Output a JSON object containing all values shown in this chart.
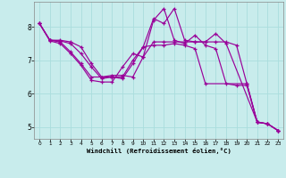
{
  "xlabel": "Windchill (Refroidissement éolien,°C)",
  "bg_color": "#c8ecec",
  "line_color": "#990099",
  "grid_color": "#aadddd",
  "x_ticks": [
    0,
    1,
    2,
    3,
    4,
    5,
    6,
    7,
    8,
    9,
    10,
    11,
    12,
    13,
    14,
    15,
    16,
    17,
    18,
    19,
    20,
    21,
    22,
    23
  ],
  "y_ticks": [
    5,
    6,
    7,
    8
  ],
  "xlim": [
    -0.5,
    23.5
  ],
  "ylim": [
    4.65,
    8.75
  ],
  "line1_x": [
    0,
    1,
    2,
    3,
    4,
    5,
    6,
    7,
    8,
    9,
    10,
    11,
    12,
    13,
    14,
    15,
    16,
    17,
    18,
    19,
    20,
    21,
    22,
    23
  ],
  "line1_y": [
    8.1,
    7.6,
    7.6,
    7.55,
    7.4,
    6.9,
    6.5,
    6.55,
    6.55,
    6.5,
    7.1,
    7.55,
    7.55,
    7.55,
    7.55,
    7.55,
    7.55,
    7.55,
    7.55,
    7.45,
    6.3,
    5.15,
    5.1,
    4.9
  ],
  "line2_x": [
    0,
    1,
    2,
    3,
    4,
    5,
    6,
    7,
    8,
    9,
    10,
    11,
    12,
    13,
    14,
    15,
    16,
    17,
    18,
    21,
    22,
    23
  ],
  "line2_y": [
    8.1,
    7.6,
    7.58,
    7.5,
    7.2,
    6.8,
    6.45,
    6.5,
    6.5,
    7.0,
    7.4,
    8.25,
    8.1,
    8.55,
    7.6,
    7.55,
    7.55,
    7.8,
    7.5,
    5.15,
    5.1,
    4.9
  ],
  "line3_x": [
    0,
    1,
    2,
    3,
    4,
    5,
    6,
    7,
    8,
    9,
    10,
    11,
    12,
    13,
    14,
    15,
    16,
    20,
    21,
    22,
    23
  ],
  "line3_y": [
    8.1,
    7.6,
    7.55,
    7.25,
    6.9,
    6.5,
    6.5,
    6.5,
    6.45,
    6.9,
    7.4,
    7.45,
    7.45,
    7.5,
    7.45,
    7.35,
    6.3,
    6.3,
    5.15,
    5.1,
    4.9
  ],
  "line4_x": [
    0,
    1,
    2,
    3,
    4,
    5,
    6,
    7,
    8,
    9,
    10,
    11,
    12,
    13,
    14,
    15,
    16,
    17,
    18,
    19,
    20,
    21,
    22,
    23
  ],
  "line4_y": [
    8.1,
    7.58,
    7.5,
    7.2,
    6.85,
    6.4,
    6.35,
    6.35,
    6.8,
    7.2,
    7.1,
    8.2,
    8.55,
    7.6,
    7.5,
    7.75,
    7.45,
    7.35,
    6.3,
    6.25,
    6.25,
    5.15,
    5.1,
    4.9
  ]
}
